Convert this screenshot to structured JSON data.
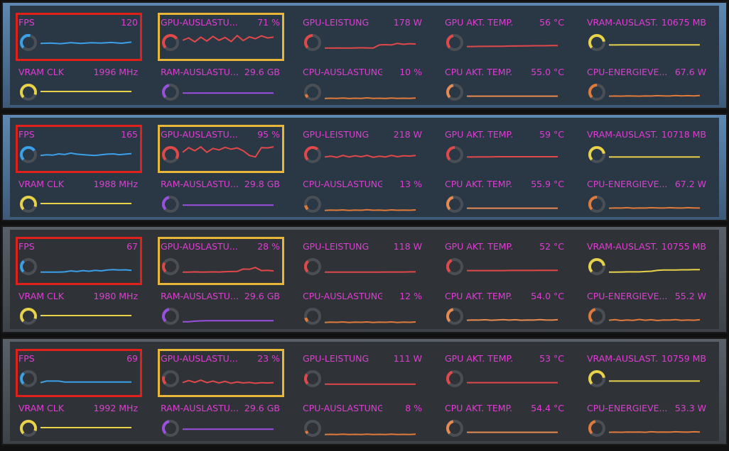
{
  "colors": {
    "label": "#e33bd6",
    "track": "#4a4f55",
    "fps": "#3aa0e8",
    "gpu": "#e0484a",
    "vram": "#e8d24a",
    "ram": "#9b4fe0",
    "cpu_load": "#e07a3a",
    "cpu_temp": "#e58a50",
    "cpu_power": "#e07a3a",
    "red_box": "#e0201a",
    "yellow_box": "#e8b73a"
  },
  "panels": [
    {
      "bg": "cool",
      "metrics": [
        {
          "id": "fps",
          "label": "FPS",
          "value": "120",
          "color": "fps",
          "level": 0.55,
          "values": [
            40,
            42,
            38,
            45,
            40,
            44,
            42,
            46,
            41,
            48
          ]
        },
        {
          "id": "gpu-util",
          "label": "GPU-AUSLASTU...",
          "value": "71 %",
          "color": "gpu",
          "level": 0.71,
          "values": [
            60,
            75,
            50,
            80,
            55,
            85,
            60,
            78,
            52,
            90,
            58,
            82,
            70,
            88,
            75,
            80
          ]
        },
        {
          "id": "gpu-power",
          "label": "GPU-LEISTUNG",
          "value": "178 W",
          "color": "gpu",
          "level": 0.5,
          "values": [
            10,
            10,
            11,
            10,
            10,
            11,
            12,
            11,
            10,
            30,
            32,
            30,
            40,
            34,
            38,
            36
          ]
        },
        {
          "id": "gpu-temp",
          "label": "GPU AKT. TEMP.",
          "value": "56 °C",
          "color": "gpu",
          "level": 0.45,
          "values": [
            20,
            20,
            21,
            21,
            22,
            22,
            22,
            23,
            23,
            24,
            24,
            25,
            25,
            25,
            26,
            26
          ]
        },
        {
          "id": "vram-usage",
          "label": "VRAM-AUSLAST.",
          "value": "10675 MB",
          "color": "vram",
          "level": 0.8,
          "values": [
            30,
            30,
            31,
            31,
            31,
            31,
            31,
            31,
            31,
            31,
            31,
            31,
            31,
            31,
            31,
            31
          ]
        },
        {
          "id": "vram-clk",
          "label": "VRAM CLK",
          "value": "1996 MHz",
          "color": "vram",
          "level": 0.9,
          "values": [
            50,
            50,
            50,
            50,
            50,
            50,
            50,
            50,
            50,
            50,
            50,
            50,
            50,
            50,
            50,
            50
          ]
        },
        {
          "id": "ram-usage",
          "label": "RAM-AUSLASTU...",
          "value": "29.6 GB",
          "color": "ram",
          "level": 0.45,
          "values": [
            40,
            40,
            40,
            40,
            40,
            40,
            40,
            40,
            40,
            40,
            40,
            40,
            40,
            40,
            40,
            40
          ]
        },
        {
          "id": "cpu-load",
          "label": "CPU-AUSLASTUNG",
          "value": "10 %",
          "color": "cpu_load",
          "level": 0.1,
          "values": [
            5,
            7,
            6,
            8,
            5,
            7,
            6,
            9,
            6,
            7,
            5,
            8,
            6,
            7,
            6,
            8
          ]
        },
        {
          "id": "cpu-temp",
          "label": "CPU AKT. TEMP.",
          "value": "55.0 °C",
          "color": "cpu_temp",
          "level": 0.45,
          "values": [
            20,
            20,
            20,
            20,
            20,
            20,
            20,
            20,
            20,
            20,
            20,
            20,
            20,
            20,
            20,
            20
          ]
        },
        {
          "id": "cpu-power",
          "label": "CPU-ENERGIEVE...",
          "value": "67.6 W",
          "color": "cpu_power",
          "level": 0.5,
          "values": [
            20,
            21,
            20,
            22,
            21,
            20,
            22,
            21,
            23,
            22,
            21,
            24,
            22,
            23,
            22,
            24
          ]
        }
      ]
    },
    {
      "bg": "cool",
      "metrics": [
        {
          "id": "fps",
          "label": "FPS",
          "value": "165",
          "color": "fps",
          "level": 0.7,
          "values": [
            40,
            44,
            42,
            50,
            46,
            55,
            48,
            45,
            42,
            40,
            44,
            48,
            50,
            45,
            48,
            52
          ]
        },
        {
          "id": "gpu-util",
          "label": "GPU-AUSLASTU...",
          "value": "95 %",
          "color": "gpu",
          "level": 0.95,
          "values": [
            60,
            90,
            70,
            95,
            60,
            85,
            75,
            92,
            80,
            88,
            70,
            40,
            30,
            90,
            88,
            95
          ]
        },
        {
          "id": "gpu-power",
          "label": "GPU-LEISTUNG",
          "value": "218 W",
          "color": "gpu",
          "level": 0.65,
          "values": [
            30,
            35,
            28,
            40,
            30,
            38,
            32,
            40,
            28,
            35,
            30,
            40,
            32,
            38,
            36,
            40
          ]
        },
        {
          "id": "gpu-temp",
          "label": "GPU AKT. TEMP.",
          "value": "59 °C",
          "color": "gpu",
          "level": 0.5,
          "values": [
            30,
            30,
            31,
            31,
            31,
            32,
            32,
            32,
            32,
            32,
            32,
            32,
            32,
            32,
            32,
            32
          ]
        },
        {
          "id": "vram-usage",
          "label": "VRAM-AUSLAST.",
          "value": "10718 MB",
          "color": "vram",
          "level": 0.8,
          "values": [
            30,
            30,
            30,
            30,
            30,
            30,
            30,
            30,
            30,
            30,
            30,
            30,
            30,
            30,
            30,
            30
          ]
        },
        {
          "id": "vram-clk",
          "label": "VRAM CLK",
          "value": "1988 MHz",
          "color": "vram",
          "level": 0.9,
          "values": [
            50,
            50,
            50,
            50,
            50,
            50,
            50,
            50,
            50,
            50,
            50,
            50,
            50,
            50,
            50,
            50
          ]
        },
        {
          "id": "ram-usage",
          "label": "RAM-AUSLASTU...",
          "value": "29.8 GB",
          "color": "ram",
          "level": 0.45,
          "values": [
            40,
            40,
            40,
            40,
            40,
            40,
            40,
            40,
            40,
            40,
            40,
            40,
            40,
            40,
            40,
            40
          ]
        },
        {
          "id": "cpu-load",
          "label": "CPU-AUSLASTUNG",
          "value": "13 %",
          "color": "cpu_load",
          "level": 0.13,
          "values": [
            6,
            8,
            7,
            9,
            6,
            8,
            7,
            10,
            7,
            8,
            6,
            9,
            7,
            8,
            7,
            9
          ]
        },
        {
          "id": "cpu-temp",
          "label": "CPU AKT. TEMP.",
          "value": "55.9 °C",
          "color": "cpu_temp",
          "level": 0.45,
          "values": [
            20,
            20,
            20,
            20,
            20,
            20,
            20,
            20,
            20,
            20,
            20,
            20,
            20,
            20,
            20,
            20
          ]
        },
        {
          "id": "cpu-power",
          "label": "CPU-ENERGIEVE...",
          "value": "67.2 W",
          "color": "cpu_power",
          "level": 0.5,
          "values": [
            20,
            22,
            21,
            23,
            20,
            22,
            21,
            23,
            22,
            21,
            23,
            22,
            21,
            23,
            22,
            21
          ]
        }
      ]
    },
    {
      "bg": "dark",
      "metrics": [
        {
          "id": "fps",
          "label": "FPS",
          "value": "67",
          "color": "fps",
          "level": 0.35,
          "values": [
            10,
            10,
            10,
            10,
            12,
            18,
            14,
            20,
            16,
            22,
            18,
            24,
            26,
            24,
            25,
            22
          ]
        },
        {
          "id": "gpu-util",
          "label": "GPU-AUSLASTU...",
          "value": "28 %",
          "color": "gpu",
          "level": 0.28,
          "values": [
            10,
            10,
            12,
            10,
            11,
            12,
            11,
            13,
            14,
            15,
            30,
            28,
            40,
            20,
            22,
            18
          ]
        },
        {
          "id": "gpu-power",
          "label": "GPU-LEISTUNG",
          "value": "118 W",
          "color": "gpu",
          "level": 0.35,
          "values": [
            10,
            10,
            10,
            10,
            10,
            10,
            10,
            10,
            10,
            10,
            11,
            11,
            11,
            11,
            12,
            12
          ]
        },
        {
          "id": "gpu-temp",
          "label": "GPU AKT. TEMP.",
          "value": "52 °C",
          "color": "gpu",
          "level": 0.4,
          "values": [
            20,
            20,
            20,
            20,
            20,
            20,
            20,
            21,
            21,
            21,
            21,
            21,
            22,
            22,
            22,
            22
          ]
        },
        {
          "id": "vram-usage",
          "label": "VRAM-AUSLAST.",
          "value": "10755 MB",
          "color": "vram",
          "level": 0.8,
          "values": [
            10,
            10,
            11,
            12,
            12,
            12,
            14,
            16,
            22,
            24,
            24,
            24,
            25,
            25,
            26,
            26
          ]
        },
        {
          "id": "vram-clk",
          "label": "VRAM CLK",
          "value": "1980 MHz",
          "color": "vram",
          "level": 0.9,
          "values": [
            50,
            50,
            50,
            50,
            50,
            50,
            50,
            50,
            50,
            50,
            50,
            50,
            50,
            50,
            50,
            50
          ]
        },
        {
          "id": "ram-usage",
          "label": "RAM-AUSLASTU...",
          "value": "29.6 GB",
          "color": "ram",
          "level": 0.45,
          "values": [
            10,
            10,
            14,
            16,
            17,
            17,
            17,
            17,
            17,
            17,
            17,
            17,
            17,
            17,
            17,
            17
          ]
        },
        {
          "id": "cpu-load",
          "label": "CPU-AUSLASTUNG",
          "value": "12 %",
          "color": "cpu_load",
          "level": 0.12,
          "values": [
            6,
            8,
            7,
            9,
            6,
            8,
            7,
            9,
            6,
            8,
            7,
            9,
            6,
            8,
            7,
            9
          ]
        },
        {
          "id": "cpu-temp",
          "label": "CPU AKT. TEMP.",
          "value": "54.0 °C",
          "color": "cpu_temp",
          "level": 0.45,
          "values": [
            20,
            22,
            21,
            23,
            20,
            22,
            24,
            21,
            23,
            20,
            22,
            21,
            24,
            22,
            21,
            23
          ]
        },
        {
          "id": "cpu-power",
          "label": "CPU-ENERGIEVE...",
          "value": "55.2 W",
          "color": "cpu_power",
          "level": 0.45,
          "values": [
            20,
            24,
            18,
            22,
            19,
            25,
            20,
            23,
            18,
            22,
            21,
            24,
            19,
            22,
            20,
            23
          ]
        }
      ]
    },
    {
      "bg": "dark",
      "metrics": [
        {
          "id": "fps",
          "label": "FPS",
          "value": "69",
          "color": "fps",
          "level": 0.35,
          "values": [
            20,
            30,
            30,
            30,
            24,
            24,
            24,
            24,
            24,
            24,
            24,
            24,
            24,
            24,
            24,
            24
          ]
        },
        {
          "id": "gpu-util",
          "label": "GPU-AUSLASTU...",
          "value": "23 %",
          "color": "gpu",
          "level": 0.23,
          "values": [
            20,
            34,
            22,
            36,
            20,
            30,
            18,
            28,
            16,
            24,
            18,
            22,
            16,
            20,
            18,
            20
          ]
        },
        {
          "id": "gpu-power",
          "label": "GPU-LEISTUNG",
          "value": "111 W",
          "color": "gpu",
          "level": 0.3,
          "values": [
            10,
            10,
            10,
            10,
            10,
            10,
            10,
            10,
            10,
            10,
            10,
            10,
            10,
            10,
            10,
            10
          ]
        },
        {
          "id": "gpu-temp",
          "label": "GPU AKT. TEMP.",
          "value": "53 °C",
          "color": "gpu",
          "level": 0.42,
          "values": [
            20,
            20,
            20,
            20,
            20,
            20,
            20,
            20,
            20,
            20,
            20,
            20,
            20,
            20,
            20,
            20
          ]
        },
        {
          "id": "vram-usage",
          "label": "VRAM-AUSLAST.",
          "value": "10759 MB",
          "color": "vram",
          "level": 0.8,
          "values": [
            30,
            30,
            30,
            30,
            30,
            30,
            30,
            30,
            30,
            30,
            30,
            30,
            30,
            30,
            30,
            30
          ]
        },
        {
          "id": "vram-clk",
          "label": "VRAM CLK",
          "value": "1992 MHz",
          "color": "vram",
          "level": 0.9,
          "values": [
            50,
            50,
            50,
            50,
            50,
            50,
            50,
            50,
            50,
            50,
            50,
            50,
            50,
            50,
            50,
            50
          ]
        },
        {
          "id": "ram-usage",
          "label": "RAM-AUSLASTU...",
          "value": "29.6 GB",
          "color": "ram",
          "level": 0.45,
          "values": [
            40,
            40,
            40,
            40,
            40,
            40,
            40,
            40,
            40,
            40,
            40,
            40,
            40,
            40,
            40,
            40
          ]
        },
        {
          "id": "cpu-load",
          "label": "CPU-AUSLASTUNG",
          "value": "8 %",
          "color": "cpu_load",
          "level": 0.08,
          "values": [
            6,
            7,
            6,
            8,
            6,
            7,
            6,
            8,
            6,
            7,
            6,
            8,
            6,
            7,
            6,
            8
          ]
        },
        {
          "id": "cpu-temp",
          "label": "CPU AKT. TEMP.",
          "value": "54.4 °C",
          "color": "cpu_temp",
          "level": 0.45,
          "values": [
            20,
            20,
            20,
            20,
            20,
            20,
            20,
            20,
            20,
            20,
            20,
            20,
            20,
            20,
            20,
            20
          ]
        },
        {
          "id": "cpu-power",
          "label": "CPU-ENERGIEVE...",
          "value": "53.3 W",
          "color": "cpu_power",
          "level": 0.45,
          "values": [
            20,
            21,
            20,
            22,
            21,
            22,
            20,
            23,
            21,
            22,
            21,
            23,
            22,
            21,
            23,
            22
          ]
        }
      ]
    }
  ]
}
